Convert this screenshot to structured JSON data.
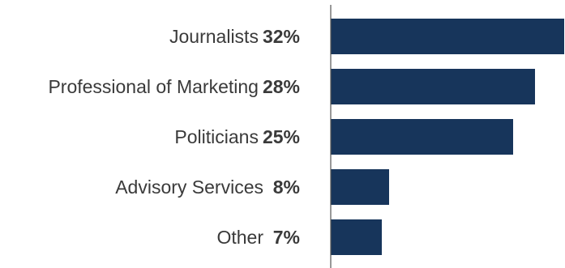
{
  "chart_data": {
    "type": "bar",
    "orientation": "horizontal",
    "categories": [
      "Journalists",
      "Professional of Marketing",
      "Politicians",
      "Advisory Services",
      "Other"
    ],
    "values": [
      32,
      28,
      25,
      8,
      7
    ],
    "value_labels": [
      "32%",
      "28%",
      "25%",
      "8%",
      "7%"
    ],
    "xlim": [
      0,
      32
    ],
    "grid": false,
    "legend": "none"
  },
  "colors": {
    "bar": "#17355b",
    "axis": "#555555",
    "text": "#3a3a3a"
  }
}
